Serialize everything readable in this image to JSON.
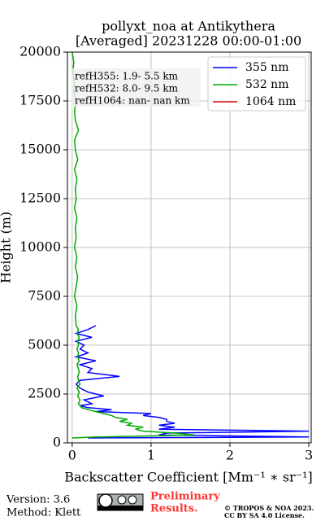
{
  "chart_data": {
    "type": "line",
    "title": [
      "pollyxt_noa at Antikythera",
      "[Averaged] 20231228 00:00-01:00"
    ],
    "xlabel": "Backscatter Coefficient [Mm⁻¹ ∗ sr⁻¹]",
    "ylabel": "Height (m)",
    "annotations": [
      "refH355:  1.9- 5.5 km",
      "refH532:  8.0- 9.5 km",
      "refH1064:  nan- nan km"
    ],
    "xlim": [
      -0.06,
      3.03
    ],
    "xticks": [
      0,
      1,
      2,
      3
    ],
    "ylim": [
      0,
      20000
    ],
    "yticks": [
      0,
      2500,
      5000,
      7500,
      10000,
      12500,
      15000,
      17500,
      20000
    ],
    "grid": true,
    "legend": "upper right",
    "y": [
      250,
      300,
      400,
      500,
      600,
      700,
      800,
      900,
      1000,
      1100,
      1200,
      1300,
      1400,
      1500,
      1600,
      1700,
      1800,
      1900,
      2000,
      2200,
      2400,
      2600,
      2800,
      3000,
      3200,
      3400,
      3600,
      3800,
      4000,
      4200,
      4400,
      4600,
      4800,
      5000,
      5200,
      5400,
      5600,
      5800,
      6000,
      6500,
      7000,
      7500,
      8000,
      8500,
      9000,
      9500,
      10000,
      10500,
      11000,
      11500,
      12000,
      12500,
      13000,
      13500,
      14000,
      14500,
      15000,
      15500,
      16000,
      16500,
      17000,
      17500,
      18000,
      18500,
      19000,
      19500,
      20000
    ],
    "series": [
      {
        "name": "355 nm",
        "color": "#0000ff",
        "values": [
          0.2,
          3.0,
          1.1,
          1.2,
          3.0,
          1.1,
          1.3,
          1.1,
          1.3,
          1.2,
          1.2,
          1.1,
          0.9,
          1.0,
          0.3,
          0.5,
          0.2,
          0.1,
          0.25,
          0.15,
          0.4,
          0.2,
          0.1,
          0.05,
          0.1,
          0.6,
          0.2,
          0.25,
          0.1,
          0.3,
          0.05,
          0.2,
          0.1,
          0.15,
          0.05,
          0.25,
          0.05,
          0.2,
          0.3,
          null,
          null,
          null,
          null,
          null,
          null,
          null,
          null,
          null,
          null,
          null,
          null,
          null,
          null,
          null,
          null,
          null,
          null,
          null,
          null,
          null,
          null,
          null,
          null,
          null,
          null,
          null,
          null
        ]
      },
      {
        "name": "532 nm",
        "color": "#00aa00",
        "values": [
          0.0,
          0.3,
          1.55,
          1.3,
          0.9,
          0.8,
          0.9,
          0.7,
          0.75,
          0.6,
          0.7,
          0.55,
          0.5,
          0.4,
          0.3,
          0.2,
          0.12,
          0.1,
          0.08,
          0.1,
          0.07,
          0.09,
          0.06,
          0.1,
          0.08,
          0.07,
          0.09,
          0.08,
          0.06,
          0.09,
          0.07,
          0.08,
          0.06,
          0.08,
          0.07,
          0.09,
          0.06,
          0.08,
          0.05,
          0.04,
          0.06,
          0.03,
          0.05,
          0.07,
          0.04,
          0.06,
          0.03,
          0.05,
          0.04,
          0.06,
          0.03,
          0.05,
          0.04,
          0.06,
          0.03,
          0.07,
          0.04,
          0.03,
          0.08,
          0.04,
          0.03,
          0.05,
          0.02,
          0.03,
          0.01,
          0.02,
          0.0
        ]
      },
      {
        "name": "1064 nm",
        "color": "#dd0000",
        "values": [
          null,
          null,
          null,
          null,
          null,
          null,
          null,
          null,
          null,
          null,
          null,
          null,
          null,
          null,
          null,
          null,
          null,
          null,
          null,
          null,
          null,
          null,
          null,
          null,
          null,
          null,
          null,
          null,
          null,
          null,
          null,
          null,
          null,
          null,
          null,
          null,
          null,
          null,
          null,
          null,
          null,
          null,
          null,
          null,
          null,
          null,
          null,
          null,
          null,
          null,
          null,
          null,
          null,
          null,
          null,
          null,
          null,
          null,
          null,
          null,
          null,
          null,
          null,
          null,
          null,
          null,
          null
        ]
      }
    ]
  },
  "footer": {
    "version": "Version: 3.6",
    "method": "Method: Klett",
    "preliminary": [
      "Preliminary",
      "Results."
    ],
    "license": [
      "© TROPOS & NOA 2023.",
      "CC BY SA 4.0 License."
    ]
  }
}
